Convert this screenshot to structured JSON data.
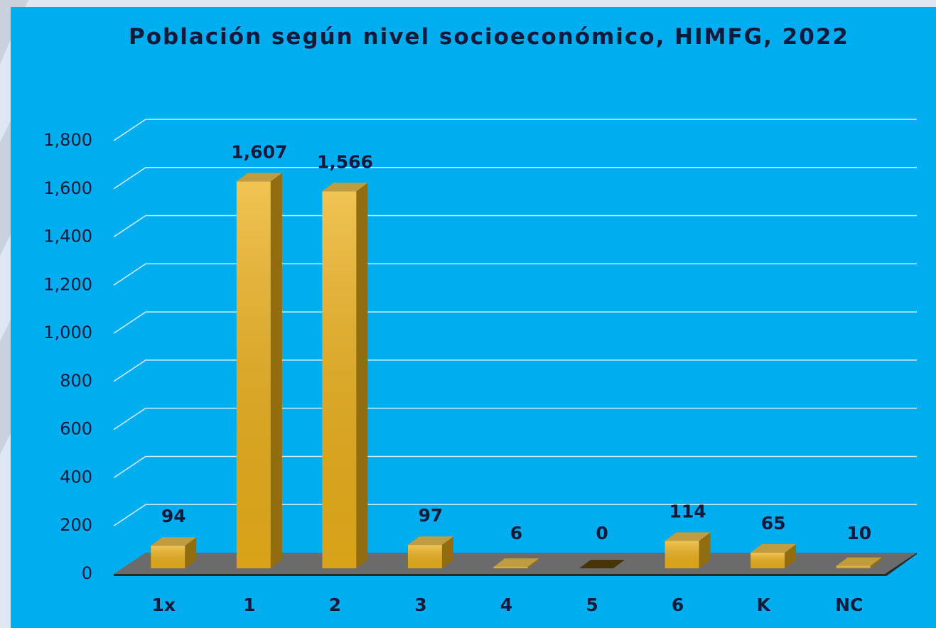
{
  "chart_data": {
    "type": "bar3d",
    "title": "Población según nivel socioeconómico, HIMFG, 2022",
    "categories": [
      "1x",
      "1",
      "2",
      "3",
      "4",
      "5",
      "6",
      "K",
      "NC"
    ],
    "values": [
      94,
      1607,
      1566,
      97,
      6,
      0,
      114,
      65,
      10
    ],
    "value_labels": [
      "94",
      "1,607",
      "1,566",
      "97",
      "6",
      "0",
      "114",
      "65",
      "10"
    ],
    "color": "#ecb01a",
    "ylim": [
      0,
      1800
    ],
    "yticks": [
      0,
      200,
      400,
      600,
      800,
      {
        "value": 1000,
        "label": "1,000"
      },
      {
        "value": 1200,
        "label": "1,200"
      },
      {
        "value": 1400,
        "label": "1,400"
      },
      {
        "value": 1600,
        "label": "1,600"
      },
      {
        "value": 1800,
        "label": "1,800"
      }
    ],
    "grid": true
  }
}
